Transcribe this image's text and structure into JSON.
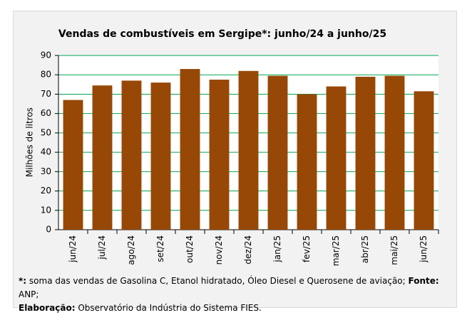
{
  "chart_data": {
    "type": "bar",
    "title": "Vendas de combustíveis em Sergipe*: junho/24 a junho/25",
    "y_label": "Milhões de litros",
    "categories": [
      "jun/24",
      "jul/24",
      "ago/24",
      "set/24",
      "out/24",
      "nov/24",
      "dez/24",
      "jan/25",
      "fev/25",
      "mar/25",
      "abr/25",
      "mai/25",
      "jun/25"
    ],
    "values": [
      67,
      74.5,
      77,
      76,
      83,
      77.5,
      82,
      79.5,
      70,
      74,
      79,
      79.5,
      71.5
    ],
    "color": "#974706",
    "grid_color": "#00a651",
    "ylim": [
      0,
      90
    ],
    "yticks": [
      0,
      10,
      20,
      30,
      40,
      50,
      60,
      70,
      80,
      90
    ],
    "grid": true
  },
  "footnote": {
    "star": "*:",
    "text": "soma das vendas de Gasolina C, Etanol hidratado, Óleo Diesel e Querosene de aviação;",
    "source_label": "Fonte:",
    "source": "ANP;",
    "credit_label": "Elaboração:",
    "credit": "Observatório da Indústria do Sistema FIES."
  }
}
